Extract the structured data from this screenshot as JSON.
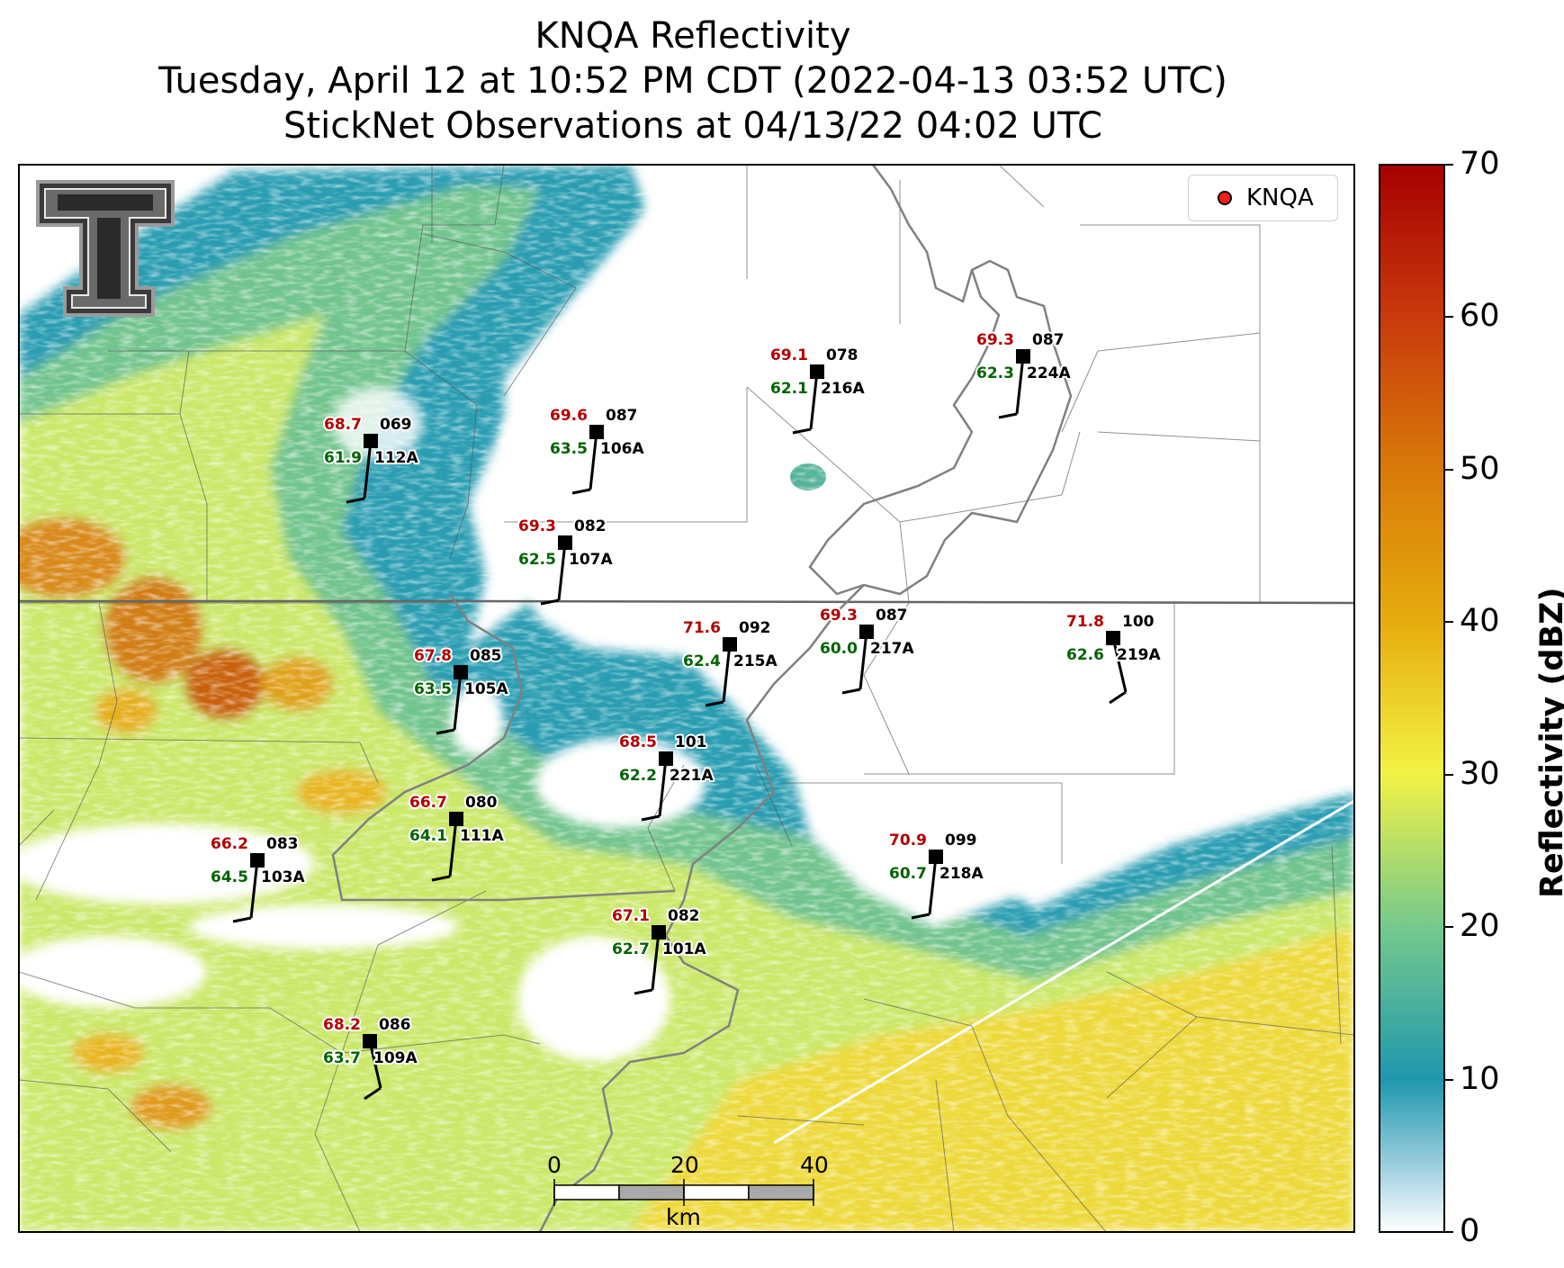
{
  "titles": {
    "line1": "KNQA Reflectivity",
    "line2": "Tuesday, April 12 at 10:52 PM CDT (2022-04-13 03:52 UTC)",
    "line3": "StickNet Observations at 04/13/22 04:02 UTC"
  },
  "legend": {
    "label": "KNQA",
    "marker_color": "#ff1a1a"
  },
  "colorbar": {
    "label": "Reflectivity (dBZ)",
    "ticks": [
      "0",
      "10",
      "20",
      "30",
      "40",
      "50",
      "60",
      "70"
    ],
    "colors": [
      "#ffffff",
      "#1f97ad",
      "#76c98d",
      "#f3f245",
      "#e6ad0e",
      "#d87a09",
      "#c93a0d",
      "#a60000"
    ]
  },
  "scalebar": {
    "ticks": [
      "0",
      "20",
      "40"
    ],
    "unit": "km"
  },
  "logo": "texas-tech-double-t",
  "stations": [
    {
      "id": "112A",
      "temp": "68.7",
      "dew": "61.9",
      "pres": "069",
      "wind": "s"
    },
    {
      "id": "106A",
      "temp": "69.6",
      "dew": "63.5",
      "pres": "087",
      "wind": "s"
    },
    {
      "id": "216A",
      "temp": "69.1",
      "dew": "62.1",
      "pres": "078",
      "wind": "s"
    },
    {
      "id": "224A",
      "temp": "69.3",
      "dew": "62.3",
      "pres": "087",
      "wind": "s"
    },
    {
      "id": "107A",
      "temp": "69.3",
      "dew": "62.5",
      "pres": "082",
      "wind": "s"
    },
    {
      "id": "215A",
      "temp": "71.6",
      "dew": "62.4",
      "pres": "092",
      "wind": "s"
    },
    {
      "id": "217A",
      "temp": "69.3",
      "dew": "60.0",
      "pres": "087",
      "wind": "s"
    },
    {
      "id": "219A",
      "temp": "71.8",
      "dew": "62.6",
      "pres": "100",
      "wind": "sse"
    },
    {
      "id": "105A",
      "temp": "67.8",
      "dew": "63.5",
      "pres": "085",
      "wind": "s"
    },
    {
      "id": "221A",
      "temp": "68.5",
      "dew": "62.2",
      "pres": "101",
      "wind": "s"
    },
    {
      "id": "111A",
      "temp": "66.7",
      "dew": "64.1",
      "pres": "080",
      "wind": "s"
    },
    {
      "id": "103A",
      "temp": "66.2",
      "dew": "64.5",
      "pres": "083",
      "wind": "s"
    },
    {
      "id": "218A",
      "temp": "70.9",
      "dew": "60.7",
      "pres": "099",
      "wind": "s"
    },
    {
      "id": "101A",
      "temp": "67.1",
      "dew": "62.7",
      "pres": "082",
      "wind": "s"
    },
    {
      "id": "109A",
      "temp": "68.2",
      "dew": "63.7",
      "pres": "086",
      "wind": "nnw"
    }
  ]
}
